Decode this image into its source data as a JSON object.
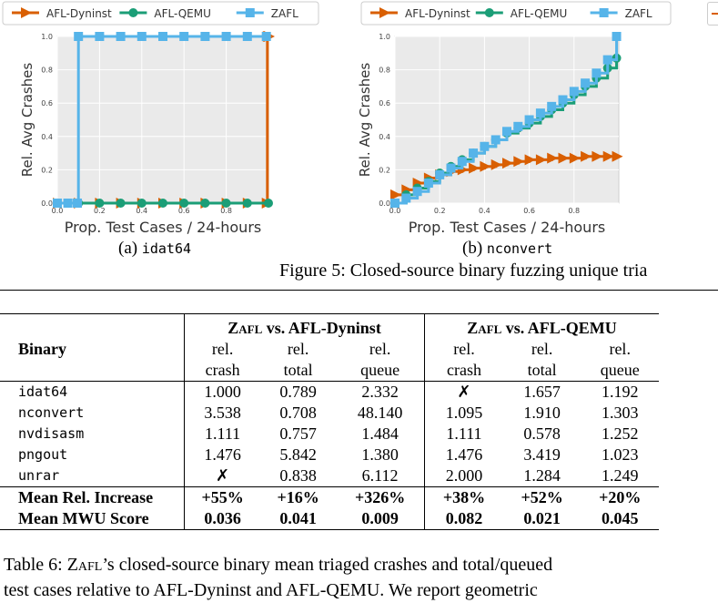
{
  "chart_data": [
    {
      "type": "line",
      "panel_caption_letter": "(a)",
      "panel_caption_name": "idat64",
      "xlabel": "Prop. Test Cases / 24-hours",
      "ylabel": "Rel. Avg Crashes",
      "xlim": [
        0,
        1.0
      ],
      "ylim": [
        0,
        1.0
      ],
      "x_ticks": [
        "0.0",
        "0.2",
        "0.4",
        "0.6",
        "0.8"
      ],
      "y_ticks": [
        "0.0",
        "0.2",
        "0.4",
        "0.6",
        "0.8",
        "1.0"
      ],
      "grid": true,
      "legend_position": "top",
      "series": [
        {
          "name": "AFL-Dyninst",
          "color": "#d95f02",
          "marker": "triangle-right",
          "x": [
            0.0,
            0.1,
            0.2,
            0.3,
            0.4,
            0.5,
            0.6,
            0.7,
            0.8,
            0.9,
            0.99,
            0.995,
            1.0
          ],
          "y": [
            0.0,
            0.0,
            0.0,
            0.0,
            0.0,
            0.0,
            0.0,
            0.0,
            0.0,
            0.0,
            0.0,
            1.0,
            1.0
          ]
        },
        {
          "name": "AFL-QEMU",
          "color": "#1b9e77",
          "marker": "circle",
          "x": [
            0.0,
            0.1,
            0.2,
            0.3,
            0.4,
            0.5,
            0.6,
            0.7,
            0.8,
            0.9,
            1.0
          ],
          "y": [
            0.0,
            0.0,
            0.0,
            0.0,
            0.0,
            0.0,
            0.0,
            0.0,
            0.0,
            0.0,
            0.0
          ]
        },
        {
          "name": "ZAFL",
          "color": "#56b4e9",
          "marker": "square",
          "x": [
            0.0,
            0.05,
            0.095,
            0.1,
            0.2,
            0.3,
            0.4,
            0.5,
            0.6,
            0.7,
            0.8,
            0.9,
            0.99
          ],
          "y": [
            0.0,
            0.0,
            0.0,
            1.0,
            1.0,
            1.0,
            1.0,
            1.0,
            1.0,
            1.0,
            1.0,
            1.0,
            1.0
          ]
        }
      ]
    },
    {
      "type": "line",
      "panel_caption_letter": "(b)",
      "panel_caption_name": "nconvert",
      "xlabel": "Prop. Test Cases / 24-hours",
      "ylabel": "Rel. Avg Crashes",
      "xlim": [
        0,
        1.0
      ],
      "ylim": [
        0,
        1.0
      ],
      "x_ticks": [
        "0.0",
        "0.2",
        "0.4",
        "0.6",
        "0.8"
      ],
      "y_ticks": [
        "0.0",
        "0.2",
        "0.4",
        "0.6",
        "0.8",
        "1.0"
      ],
      "grid": true,
      "legend_position": "top",
      "series": [
        {
          "name": "AFL-Dyninst",
          "color": "#d95f02",
          "marker": "triangle-right",
          "x": [
            0.0,
            0.05,
            0.1,
            0.15,
            0.2,
            0.25,
            0.3,
            0.35,
            0.4,
            0.45,
            0.5,
            0.55,
            0.6,
            0.65,
            0.7,
            0.75,
            0.8,
            0.85,
            0.9,
            0.95,
            0.99
          ],
          "y": [
            0.05,
            0.08,
            0.12,
            0.15,
            0.17,
            0.19,
            0.2,
            0.21,
            0.22,
            0.23,
            0.24,
            0.25,
            0.26,
            0.26,
            0.27,
            0.27,
            0.27,
            0.28,
            0.28,
            0.28,
            0.28
          ]
        },
        {
          "name": "AFL-QEMU",
          "color": "#1b9e77",
          "marker": "circle",
          "x": [
            0.0,
            0.05,
            0.1,
            0.15,
            0.2,
            0.25,
            0.3,
            0.35,
            0.4,
            0.45,
            0.5,
            0.55,
            0.6,
            0.65,
            0.7,
            0.75,
            0.8,
            0.85,
            0.9,
            0.95,
            0.99
          ],
          "y": [
            0.0,
            0.05,
            0.09,
            0.13,
            0.18,
            0.22,
            0.26,
            0.3,
            0.34,
            0.38,
            0.42,
            0.45,
            0.48,
            0.52,
            0.56,
            0.6,
            0.65,
            0.7,
            0.75,
            0.81,
            0.87
          ]
        },
        {
          "name": "ZAFL",
          "color": "#56b4e9",
          "marker": "square",
          "x": [
            0.0,
            0.05,
            0.1,
            0.15,
            0.2,
            0.25,
            0.3,
            0.35,
            0.4,
            0.45,
            0.5,
            0.55,
            0.6,
            0.65,
            0.7,
            0.75,
            0.8,
            0.85,
            0.9,
            0.95,
            0.99
          ],
          "y": [
            0.0,
            0.03,
            0.07,
            0.12,
            0.17,
            0.21,
            0.25,
            0.3,
            0.34,
            0.38,
            0.43,
            0.46,
            0.5,
            0.54,
            0.58,
            0.62,
            0.67,
            0.72,
            0.78,
            0.86,
            1.0
          ]
        }
      ]
    }
  ],
  "figure_caption": "Figure 5: Closed-source binary fuzzing unique tria",
  "table": {
    "group1_zafl": "Zafl",
    "group1_rest": " vs. AFL-Dyninst",
    "group2_zafl": "Zafl",
    "group2_rest": " vs. AFL-QEMU",
    "binary_header": "Binary",
    "sub1": [
      "rel.",
      "rel.",
      "rel.",
      "rel.",
      "rel.",
      "rel."
    ],
    "sub2": [
      "crash",
      "total",
      "queue",
      "crash",
      "total",
      "queue"
    ],
    "rows": [
      {
        "name": "idat64",
        "cells": [
          "1.000",
          "0.789",
          "2.332",
          "✗",
          "1.657",
          "1.192"
        ]
      },
      {
        "name": "nconvert",
        "cells": [
          "3.538",
          "0.708",
          "48.140",
          "1.095",
          "1.910",
          "1.303"
        ]
      },
      {
        "name": "nvdisasm",
        "cells": [
          "1.111",
          "0.757",
          "1.484",
          "1.111",
          "0.578",
          "1.252"
        ]
      },
      {
        "name": "pngout",
        "cells": [
          "1.476",
          "5.842",
          "1.380",
          "1.476",
          "3.419",
          "1.023"
        ]
      },
      {
        "name": "unrar",
        "cells": [
          "✗",
          "0.838",
          "6.112",
          "2.000",
          "1.284",
          "1.249"
        ]
      }
    ],
    "summary": [
      {
        "name": "Mean Rel. Increase",
        "cells": [
          "+55%",
          "+16%",
          "+326%",
          "+38%",
          "+52%",
          "+20%"
        ]
      },
      {
        "name": "Mean MWU Score",
        "cells": [
          "0.036",
          "0.041",
          "0.009",
          "0.082",
          "0.021",
          "0.045"
        ]
      }
    ]
  },
  "table_caption": {
    "line1_prefix": "Table 6: ",
    "line1_zafl": "Zafl",
    "line1_rest": "’s closed-source binary mean triaged crashes and total/queued",
    "line2": "test cases relative to AFL-Dyninst and AFL-QEMU. We report geometric"
  }
}
